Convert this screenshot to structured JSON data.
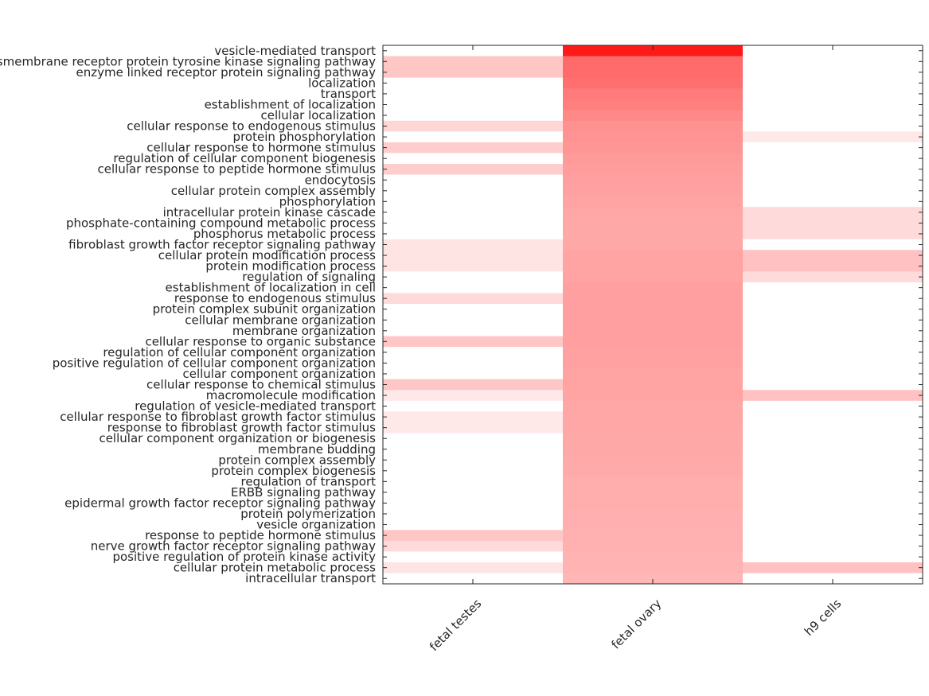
{
  "chart_data": {
    "type": "heatmap",
    "title": "",
    "xlabel": "",
    "ylabel": "",
    "columns": [
      "fetal testes",
      "fetal ovary",
      "h9 cells"
    ],
    "rows": [
      "vesicle-mediated transport",
      "transmembrane receptor protein tyrosine kinase signaling pathway",
      "enzyme linked receptor protein signaling pathway",
      "localization",
      "transport",
      "establishment of localization",
      "cellular localization",
      "cellular response to endogenous stimulus",
      "protein phosphorylation",
      "cellular response to hormone stimulus",
      "regulation of cellular component biogenesis",
      "cellular response to peptide hormone stimulus",
      "endocytosis",
      "cellular protein complex assembly",
      "phosphorylation",
      "intracellular protein kinase cascade",
      "phosphate-containing compound metabolic process",
      "phosphorus metabolic process",
      "fibroblast growth factor receptor signaling pathway",
      "cellular protein modification process",
      "protein modification process",
      "regulation of signaling",
      "establishment of localization in cell",
      "response to endogenous stimulus",
      "protein complex subunit organization",
      "cellular membrane organization",
      "membrane organization",
      "cellular response to organic substance",
      "regulation of cellular component organization",
      "positive regulation of cellular component organization",
      "cellular component organization",
      "cellular response to chemical stimulus",
      "macromolecule modification",
      "regulation of vesicle-mediated transport",
      "cellular response to fibroblast growth factor stimulus",
      "response to fibroblast growth factor stimulus",
      "cellular component organization or biogenesis",
      "membrane budding",
      "protein complex assembly",
      "protein complex biogenesis",
      "regulation of transport",
      "ERBB signaling pathway",
      "epidermal growth factor receptor signaling pathway",
      "protein polymerization",
      "vesicle organization",
      "response to peptide hormone stimulus",
      "nerve growth factor receptor signaling pathway",
      "positive regulation of protein kinase activity",
      "cellular protein metabolic process",
      "intracellular transport"
    ],
    "values": [
      [
        0.0,
        1.0,
        0.0
      ],
      [
        0.25,
        0.65,
        0.0
      ],
      [
        0.25,
        0.65,
        0.0
      ],
      [
        0.0,
        0.63,
        0.0
      ],
      [
        0.0,
        0.58,
        0.0
      ],
      [
        0.0,
        0.56,
        0.0
      ],
      [
        0.0,
        0.52,
        0.0
      ],
      [
        0.18,
        0.48,
        0.0
      ],
      [
        0.0,
        0.47,
        0.1
      ],
      [
        0.22,
        0.46,
        0.0
      ],
      [
        0.0,
        0.44,
        0.0
      ],
      [
        0.22,
        0.43,
        0.0
      ],
      [
        0.0,
        0.42,
        0.0
      ],
      [
        0.0,
        0.41,
        0.0
      ],
      [
        0.0,
        0.4,
        0.0
      ],
      [
        0.0,
        0.39,
        0.16
      ],
      [
        0.0,
        0.38,
        0.16
      ],
      [
        0.0,
        0.38,
        0.16
      ],
      [
        0.12,
        0.38,
        0.0
      ],
      [
        0.12,
        0.4,
        0.27
      ],
      [
        0.12,
        0.4,
        0.27
      ],
      [
        0.0,
        0.4,
        0.16
      ],
      [
        0.0,
        0.42,
        0.0
      ],
      [
        0.16,
        0.42,
        0.0
      ],
      [
        0.0,
        0.42,
        0.0
      ],
      [
        0.0,
        0.42,
        0.0
      ],
      [
        0.0,
        0.42,
        0.0
      ],
      [
        0.25,
        0.42,
        0.0
      ],
      [
        0.0,
        0.41,
        0.0
      ],
      [
        0.0,
        0.41,
        0.0
      ],
      [
        0.0,
        0.4,
        0.0
      ],
      [
        0.25,
        0.4,
        0.0
      ],
      [
        0.1,
        0.4,
        0.27
      ],
      [
        0.0,
        0.39,
        0.0
      ],
      [
        0.1,
        0.39,
        0.0
      ],
      [
        0.1,
        0.39,
        0.0
      ],
      [
        0.0,
        0.38,
        0.0
      ],
      [
        0.0,
        0.38,
        0.0
      ],
      [
        0.0,
        0.37,
        0.0
      ],
      [
        0.0,
        0.37,
        0.0
      ],
      [
        0.0,
        0.36,
        0.0
      ],
      [
        0.0,
        0.36,
        0.0
      ],
      [
        0.0,
        0.36,
        0.0
      ],
      [
        0.0,
        0.35,
        0.0
      ],
      [
        0.0,
        0.35,
        0.0
      ],
      [
        0.25,
        0.34,
        0.0
      ],
      [
        0.16,
        0.34,
        0.0
      ],
      [
        0.0,
        0.33,
        0.0
      ],
      [
        0.12,
        0.33,
        0.27
      ],
      [
        0.0,
        0.32,
        0.0
      ]
    ],
    "colormap": {
      "low": "#ffffff",
      "high": "#ff1a1a"
    },
    "grid": false,
    "legend": "none"
  }
}
